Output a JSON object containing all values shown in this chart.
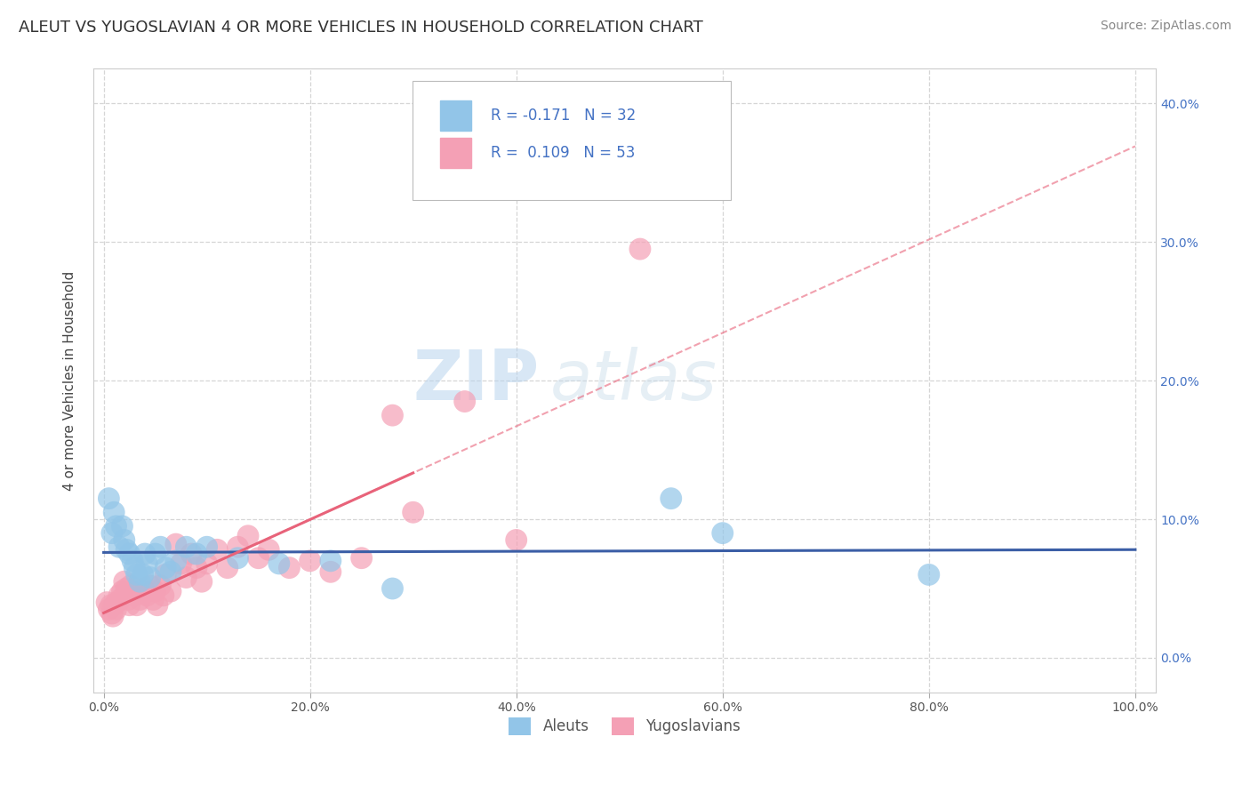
{
  "title": "ALEUT VS YUGOSLAVIAN 4 OR MORE VEHICLES IN HOUSEHOLD CORRELATION CHART",
  "source": "Source: ZipAtlas.com",
  "ylabel": "4 or more Vehicles in Household",
  "watermark_zip": "ZIP",
  "watermark_atlas": "atlas",
  "xlim": [
    -0.01,
    1.02
  ],
  "ylim": [
    -0.025,
    0.425
  ],
  "x_ticks": [
    0.0,
    0.2,
    0.4,
    0.6,
    0.8,
    1.0
  ],
  "x_tick_labels": [
    "0.0%",
    "20.0%",
    "40.0%",
    "60.0%",
    "80.0%",
    "100.0%"
  ],
  "y_ticks": [
    0.0,
    0.1,
    0.2,
    0.3,
    0.4
  ],
  "y_tick_labels": [
    "0.0%",
    "10.0%",
    "20.0%",
    "30.0%",
    "40.0%"
  ],
  "aleuts_color": "#92C5E8",
  "yugoslavians_color": "#F4A0B5",
  "aleuts_line_color": "#3B5EA6",
  "yugoslavians_line_color": "#E8637A",
  "legend_text_color": "#4472C4",
  "aleuts_R": -0.171,
  "aleuts_N": 32,
  "yugoslavians_R": 0.109,
  "yugoslavians_N": 53,
  "aleuts_x": [
    0.005,
    0.008,
    0.01,
    0.012,
    0.015,
    0.018,
    0.02,
    0.022,
    0.025,
    0.028,
    0.03,
    0.032,
    0.035,
    0.038,
    0.04,
    0.042,
    0.045,
    0.05,
    0.055,
    0.06,
    0.065,
    0.07,
    0.08,
    0.09,
    0.1,
    0.13,
    0.17,
    0.22,
    0.28,
    0.55,
    0.6,
    0.8
  ],
  "aleuts_y": [
    0.115,
    0.09,
    0.105,
    0.095,
    0.08,
    0.095,
    0.085,
    0.078,
    0.075,
    0.07,
    0.065,
    0.06,
    0.055,
    0.06,
    0.075,
    0.068,
    0.058,
    0.075,
    0.08,
    0.065,
    0.062,
    0.07,
    0.08,
    0.075,
    0.08,
    0.072,
    0.068,
    0.07,
    0.05,
    0.115,
    0.09,
    0.06
  ],
  "yugoslavians_x": [
    0.003,
    0.005,
    0.007,
    0.008,
    0.009,
    0.01,
    0.012,
    0.013,
    0.015,
    0.016,
    0.018,
    0.02,
    0.022,
    0.024,
    0.025,
    0.026,
    0.028,
    0.03,
    0.032,
    0.035,
    0.038,
    0.04,
    0.042,
    0.045,
    0.048,
    0.05,
    0.052,
    0.055,
    0.058,
    0.06,
    0.065,
    0.07,
    0.075,
    0.08,
    0.085,
    0.09,
    0.095,
    0.1,
    0.11,
    0.12,
    0.13,
    0.14,
    0.15,
    0.16,
    0.18,
    0.2,
    0.22,
    0.25,
    0.28,
    0.3,
    0.35,
    0.4,
    0.52
  ],
  "yugoslavians_y": [
    0.04,
    0.035,
    0.038,
    0.032,
    0.03,
    0.038,
    0.035,
    0.04,
    0.045,
    0.042,
    0.048,
    0.055,
    0.05,
    0.042,
    0.038,
    0.052,
    0.048,
    0.045,
    0.038,
    0.042,
    0.05,
    0.048,
    0.045,
    0.052,
    0.042,
    0.048,
    0.038,
    0.052,
    0.045,
    0.06,
    0.048,
    0.082,
    0.068,
    0.058,
    0.075,
    0.065,
    0.055,
    0.068,
    0.078,
    0.065,
    0.08,
    0.088,
    0.072,
    0.078,
    0.065,
    0.07,
    0.062,
    0.072,
    0.175,
    0.105,
    0.185,
    0.085,
    0.295
  ],
  "grid_color": "#CCCCCC",
  "background_color": "#FFFFFF",
  "title_fontsize": 13,
  "axis_label_fontsize": 11,
  "tick_fontsize": 10,
  "source_fontsize": 10
}
